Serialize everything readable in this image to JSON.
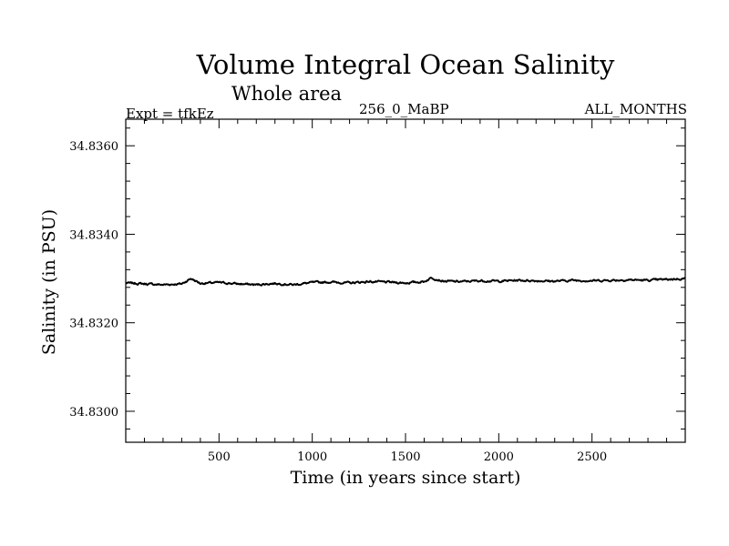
{
  "chart_data": {
    "type": "line",
    "title": "Volume Integral Ocean Salinity",
    "subtitle": "Whole area",
    "experiment": "Expt = tfkEz",
    "run": "256_0_MaBP",
    "period": "ALL_MONTHS",
    "xlabel": "Time (in years since start)",
    "ylabel": "Salinity (in PSU)",
    "xlim": [
      0,
      3000
    ],
    "ylim": [
      34.8293,
      34.8366
    ],
    "x_ticks": [
      500,
      1000,
      1500,
      2000,
      2500
    ],
    "y_ticks": [
      34.83,
      34.832,
      34.834,
      34.836
    ],
    "x_tick_labels": [
      "500",
      "1000",
      "1500",
      "2000",
      "2500"
    ],
    "y_tick_labels": [
      "34.8300",
      "34.8320",
      "34.8340",
      "34.8360"
    ],
    "grid": false,
    "line_color": "#000000",
    "series": [
      {
        "x": [
          0,
          100,
          200,
          300,
          350,
          400,
          500,
          600,
          700,
          800,
          900,
          1000,
          1100,
          1200,
          1300,
          1400,
          1500,
          1600,
          1640,
          1700,
          1800,
          1900,
          2000,
          2100,
          2200,
          2300,
          2400,
          2500,
          2600,
          2700,
          2800,
          2900,
          3000
        ],
        "values": [
          34.8329,
          34.83288,
          34.83286,
          34.83288,
          34.833,
          34.83289,
          34.83291,
          34.83288,
          34.83286,
          34.83289,
          34.83286,
          34.83291,
          34.83292,
          34.8329,
          34.83293,
          34.83292,
          34.8329,
          34.83293,
          34.83302,
          34.83294,
          34.83293,
          34.83295,
          34.83294,
          34.83296,
          34.83295,
          34.83294,
          34.83296,
          34.83295,
          34.83296,
          34.83297,
          34.83296,
          34.83298,
          34.833
        ]
      }
    ]
  }
}
